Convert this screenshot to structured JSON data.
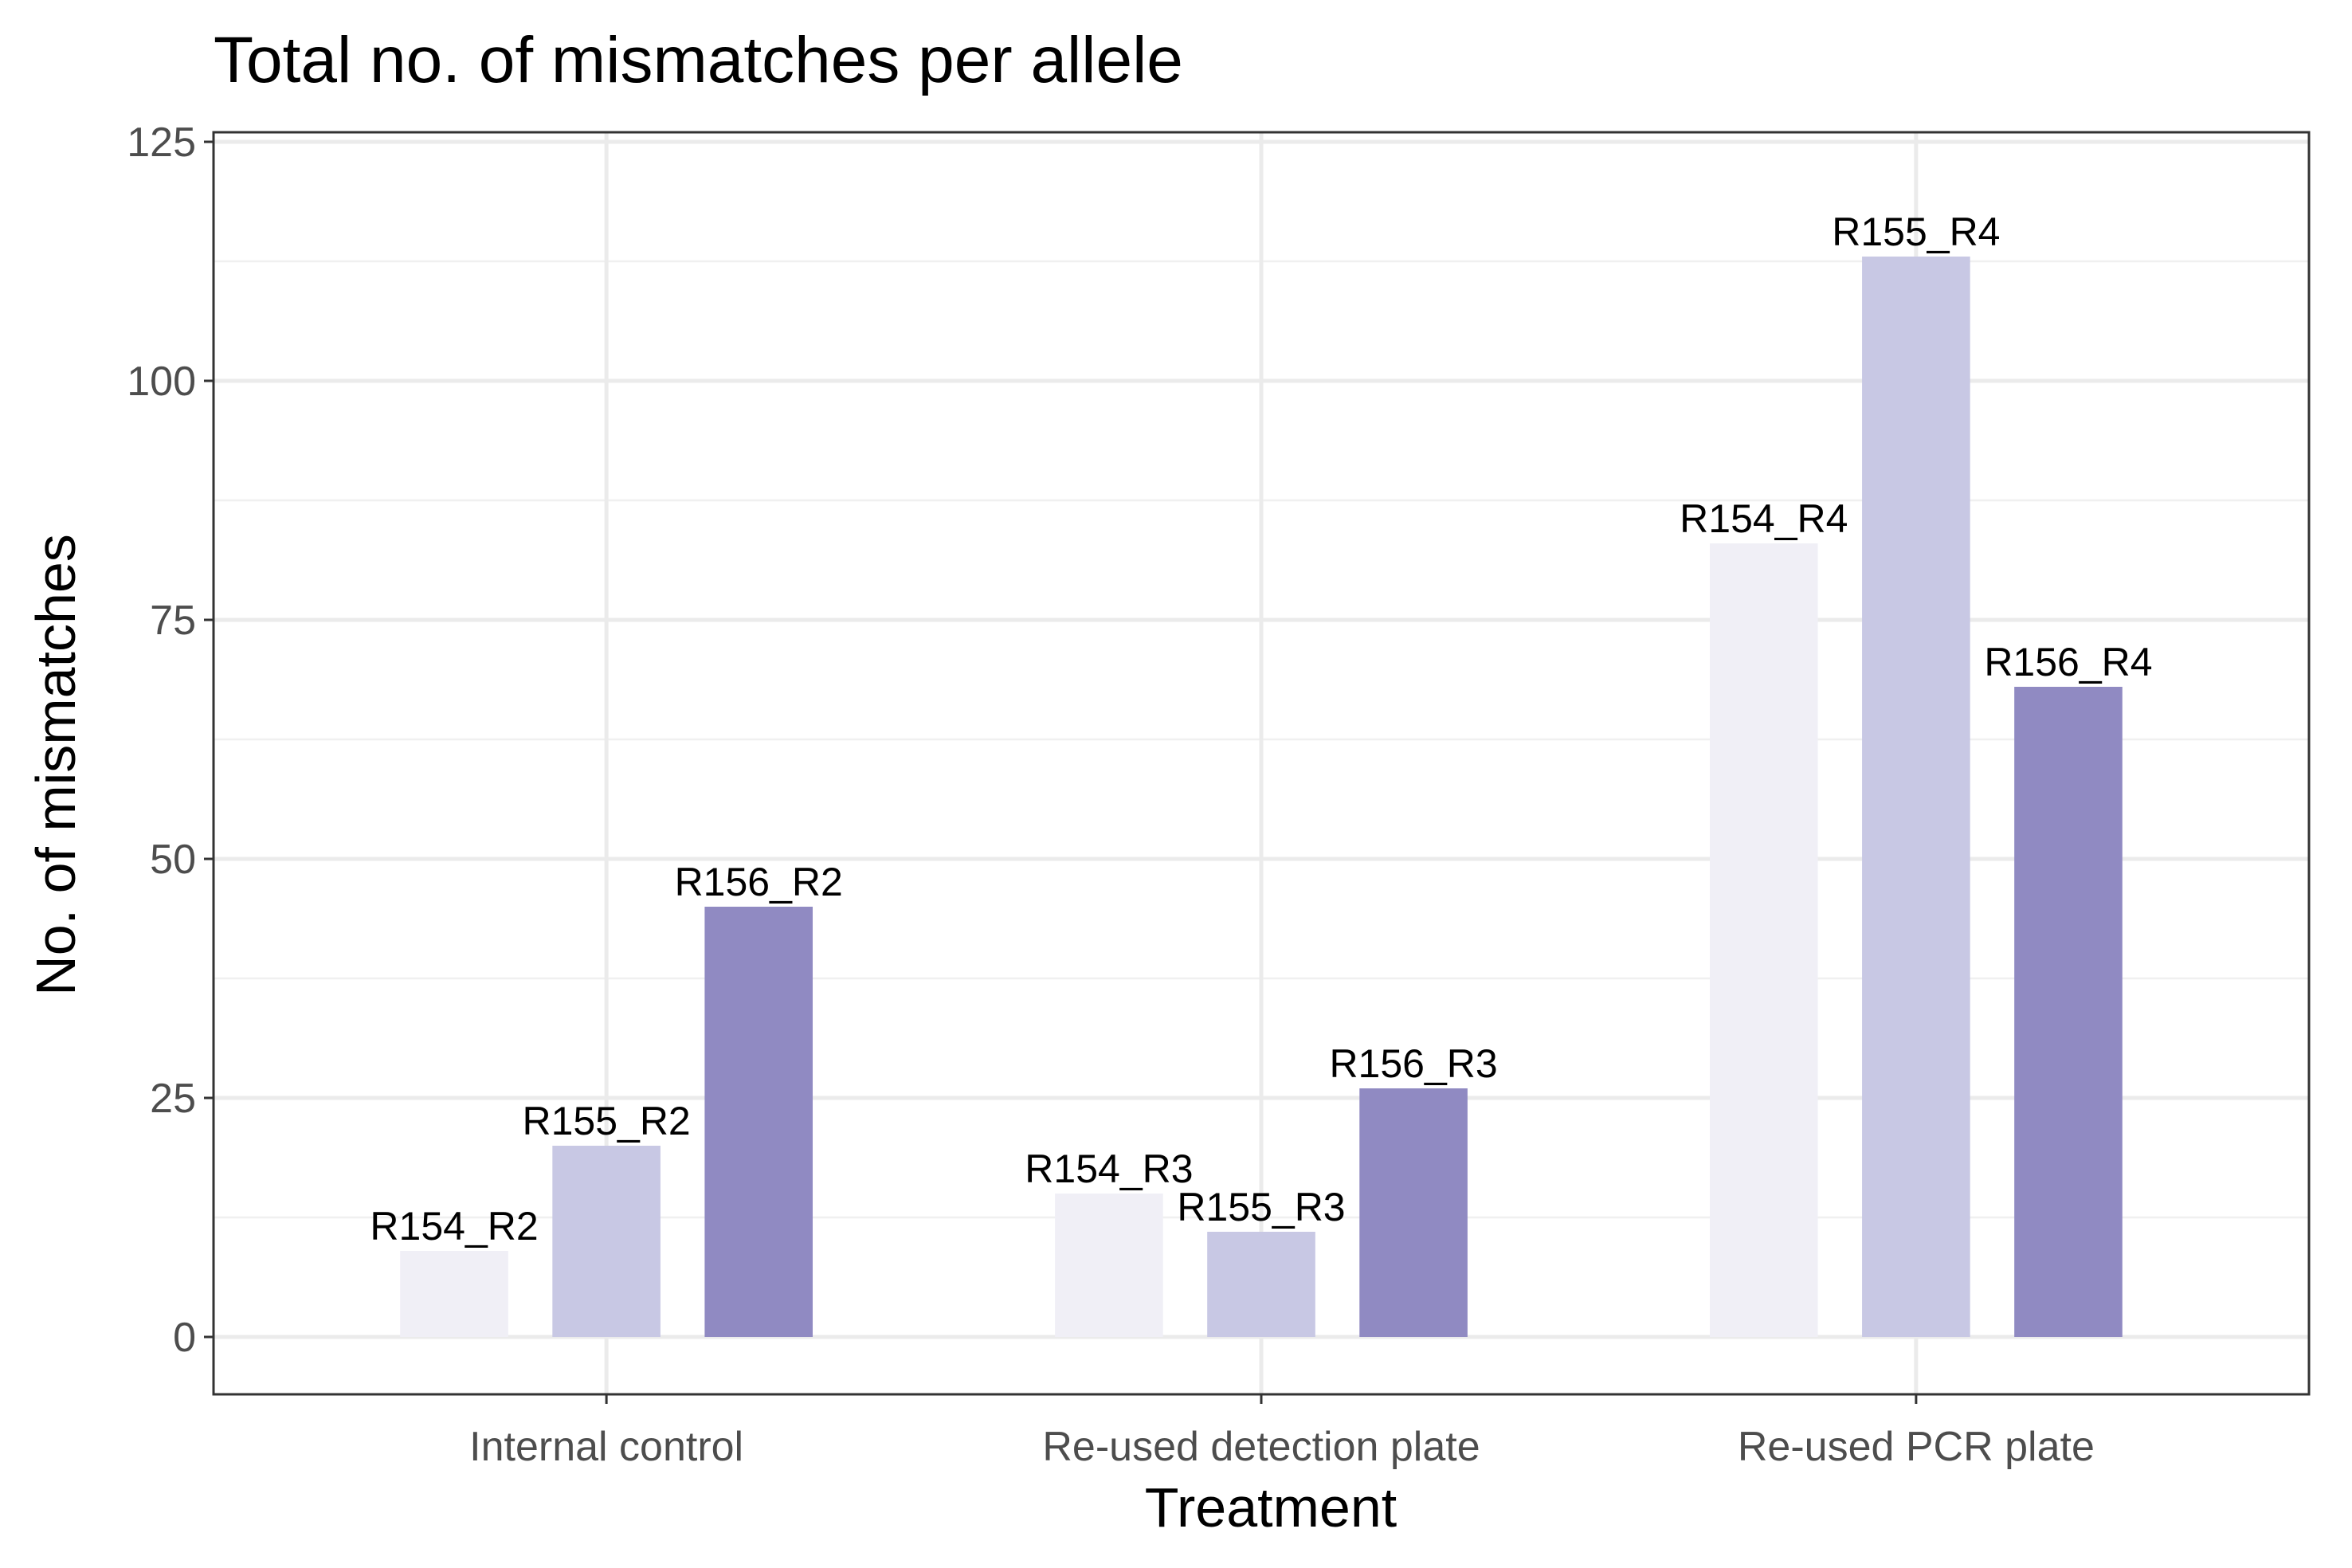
{
  "chart_data": {
    "type": "bar",
    "title": "Total no. of mismatches per allele",
    "xlabel": "Treatment",
    "ylabel": "No. of mismatches",
    "ylim": [
      -6,
      126
    ],
    "yticks": [
      0,
      25,
      50,
      75,
      100,
      125
    ],
    "categories": [
      "Internal control",
      "Re-used detection plate",
      "Re-used PCR plate"
    ],
    "series": [
      {
        "color": "#f0eff6",
        "values": [
          9,
          15,
          83
        ],
        "labels": [
          "R154_R2",
          "R154_R3",
          "R154_R4"
        ]
      },
      {
        "color": "#c8c8e4",
        "values": [
          20,
          11,
          113
        ],
        "labels": [
          "R155_R2",
          "R155_R3",
          "R155_R4"
        ]
      },
      {
        "color": "#908ac2",
        "values": [
          45,
          26,
          68
        ],
        "labels": [
          "R156_R2",
          "R156_R3",
          "R156_R4"
        ]
      }
    ],
    "grid": true,
    "legend": "none"
  }
}
